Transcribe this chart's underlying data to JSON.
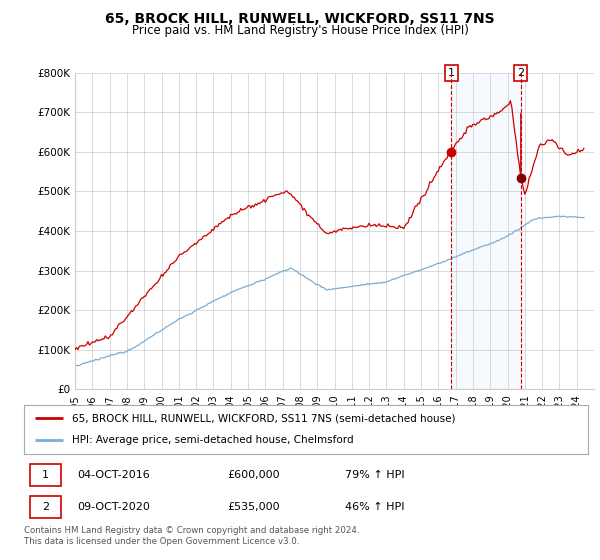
{
  "title": "65, BROCK HILL, RUNWELL, WICKFORD, SS11 7NS",
  "subtitle": "Price paid vs. HM Land Registry's House Price Index (HPI)",
  "ylim": [
    0,
    800000
  ],
  "yticks": [
    0,
    100000,
    200000,
    300000,
    400000,
    500000,
    600000,
    700000,
    800000
  ],
  "ytick_labels": [
    "£0",
    "£100K",
    "£200K",
    "£300K",
    "£400K",
    "£500K",
    "£600K",
    "£700K",
    "£800K"
  ],
  "x_start_year": 1995,
  "x_end_year": 2024,
  "sale1_year": 2016.75,
  "sale1_price": 600000,
  "sale1_peak": 700000,
  "sale1_label": "1",
  "sale2_year": 2020.77,
  "sale2_price": 535000,
  "sale2_label": "2",
  "red_color": "#cc0000",
  "blue_color": "#7aadd4",
  "vline_color": "#cc0000",
  "annotation_box_color": "#cc0000",
  "grid_color": "#cccccc",
  "bg_color": "#ffffff",
  "legend_entry1": "65, BROCK HILL, RUNWELL, WICKFORD, SS11 7NS (semi-detached house)",
  "legend_entry2": "HPI: Average price, semi-detached house, Chelmsford",
  "table_row1": [
    "1",
    "04-OCT-2016",
    "£600,000",
    "79% ↑ HPI"
  ],
  "table_row2": [
    "2",
    "09-OCT-2020",
    "£535,000",
    "46% ↑ HPI"
  ],
  "footer": "Contains HM Land Registry data © Crown copyright and database right 2024.\nThis data is licensed under the Open Government Licence v3.0.",
  "title_fontsize": 10,
  "subtitle_fontsize": 8.5,
  "tick_fontsize": 7.5
}
